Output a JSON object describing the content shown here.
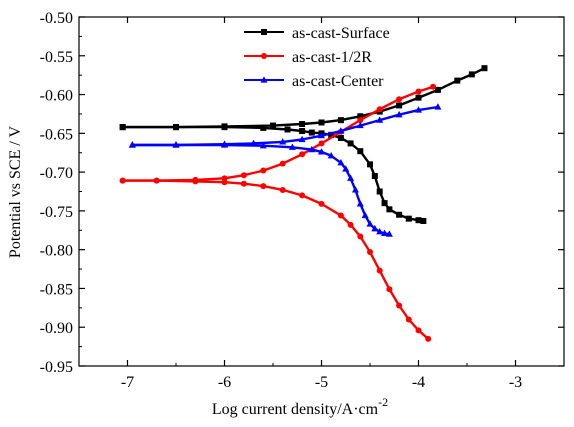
{
  "chart_data": {
    "type": "line",
    "title": "",
    "xlabel": "Log current density/A·cm",
    "xlabel_sup": "-2",
    "ylabel": "Potential vs SCE / V",
    "xlim": [
      -7.5,
      -2.5
    ],
    "ylim": [
      -0.95,
      -0.5
    ],
    "x_ticks": [
      -7,
      -6,
      -5,
      -4,
      -3
    ],
    "x_tick_labels": [
      "-7",
      "-6",
      "-5",
      "-4",
      "-3"
    ],
    "y_ticks": [
      -0.5,
      -0.55,
      -0.6,
      -0.65,
      -0.7,
      -0.75,
      -0.8,
      -0.85,
      -0.9,
      -0.95
    ],
    "y_tick_labels": [
      "-0.50",
      "-0.55",
      "-0.60",
      "-0.65",
      "-0.70",
      "-0.75",
      "-0.80",
      "-0.85",
      "-0.90",
      "-0.95"
    ],
    "grid": false,
    "legend_position": "top-center",
    "series": [
      {
        "name": "as-cast-Surface",
        "color": "#000000",
        "marker": "square",
        "branches": [
          {
            "x": [
              -7.05,
              -6.5,
              -6.0,
              -5.6,
              -5.35,
              -5.2,
              -5.1,
              -5.0,
              -4.9,
              -4.8,
              -4.7,
              -4.6,
              -4.5,
              -4.45,
              -4.4,
              -4.35,
              -4.3,
              -4.2,
              -4.1,
              -4.0,
              -3.95
            ],
            "y": [
              -0.642,
              -0.642,
              -0.642,
              -0.643,
              -0.645,
              -0.647,
              -0.649,
              -0.65,
              -0.652,
              -0.656,
              -0.663,
              -0.673,
              -0.69,
              -0.705,
              -0.725,
              -0.74,
              -0.748,
              -0.755,
              -0.76,
              -0.762,
              -0.763
            ]
          },
          {
            "x": [
              -7.05,
              -6.5,
              -6.0,
              -5.5,
              -5.2,
              -5.0,
              -4.8,
              -4.6,
              -4.4,
              -4.2,
              -4.0,
              -3.8,
              -3.6,
              -3.45,
              -3.32
            ],
            "y": [
              -0.642,
              -0.642,
              -0.641,
              -0.64,
              -0.638,
              -0.636,
              -0.633,
              -0.628,
              -0.622,
              -0.614,
              -0.604,
              -0.594,
              -0.582,
              -0.574,
              -0.566
            ]
          }
        ]
      },
      {
        "name": "as-cast-1/2R",
        "color": "#ff0000",
        "marker": "circle",
        "branches": [
          {
            "x": [
              -7.05,
              -6.7,
              -6.3,
              -6.0,
              -5.8,
              -5.6,
              -5.4,
              -5.2,
              -5.0,
              -4.8,
              -4.7,
              -4.6,
              -4.5,
              -4.4,
              -4.3,
              -4.2,
              -4.1,
              -4.0,
              -3.9
            ],
            "y": [
              -0.711,
              -0.711,
              -0.712,
              -0.713,
              -0.715,
              -0.718,
              -0.723,
              -0.73,
              -0.741,
              -0.756,
              -0.768,
              -0.783,
              -0.803,
              -0.827,
              -0.851,
              -0.872,
              -0.89,
              -0.904,
              -0.915
            ]
          },
          {
            "x": [
              -7.05,
              -6.7,
              -6.3,
              -6.0,
              -5.8,
              -5.6,
              -5.4,
              -5.2,
              -5.0,
              -4.8,
              -4.6,
              -4.4,
              -4.2,
              -4.0,
              -3.85
            ],
            "y": [
              -0.711,
              -0.711,
              -0.71,
              -0.708,
              -0.704,
              -0.698,
              -0.689,
              -0.677,
              -0.663,
              -0.648,
              -0.633,
              -0.619,
              -0.606,
              -0.596,
              -0.59
            ]
          }
        ]
      },
      {
        "name": "as-cast-Center",
        "color": "#0000ff",
        "marker": "triangle",
        "branches": [
          {
            "x": [
              -6.95,
              -6.5,
              -6.0,
              -5.6,
              -5.3,
              -5.1,
              -5.0,
              -4.9,
              -4.8,
              -4.75,
              -4.7,
              -4.65,
              -4.6,
              -4.55,
              -4.5,
              -4.45,
              -4.4,
              -4.35,
              -4.3
            ],
            "y": [
              -0.665,
              -0.665,
              -0.665,
              -0.666,
              -0.668,
              -0.671,
              -0.674,
              -0.679,
              -0.688,
              -0.696,
              -0.708,
              -0.723,
              -0.741,
              -0.756,
              -0.767,
              -0.773,
              -0.777,
              -0.779,
              -0.78
            ]
          },
          {
            "x": [
              -6.95,
              -6.5,
              -6.0,
              -5.7,
              -5.4,
              -5.2,
              -5.0,
              -4.8,
              -4.6,
              -4.4,
              -4.2,
              -4.0,
              -3.8
            ],
            "y": [
              -0.665,
              -0.665,
              -0.664,
              -0.663,
              -0.661,
              -0.658,
              -0.653,
              -0.647,
              -0.64,
              -0.633,
              -0.626,
              -0.62,
              -0.616
            ]
          }
        ]
      }
    ]
  }
}
